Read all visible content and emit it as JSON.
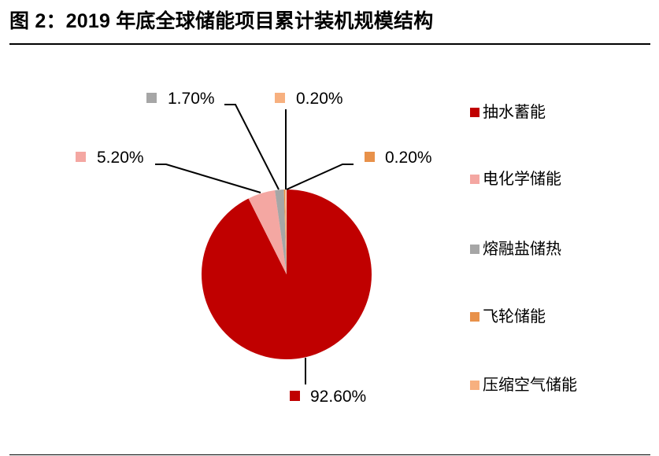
{
  "title": "图 2：2019 年底全球储能项目累计装机规模结构",
  "chart_data": {
    "type": "pie",
    "title": "图 2：2019 年底全球储能项目累计装机规模结构",
    "categories": [
      "抽水蓄能",
      "电化学储能",
      "熔融盐储热",
      "飞轮储能",
      "压缩空气储能"
    ],
    "values": [
      92.6,
      5.2,
      1.7,
      0.2,
      0.2
    ],
    "labels": [
      "92.60%",
      "5.20%",
      "1.70%",
      "0.20%",
      "0.20%"
    ],
    "colors": [
      "#C00000",
      "#F4A7A2",
      "#A6A6A6",
      "#E8914A",
      "#F7B07F"
    ],
    "start_angle": 90,
    "direction": "clockwise",
    "legend_position": "right",
    "xlabel": "",
    "ylabel": ""
  },
  "legend": [
    {
      "label": "抽水蓄能",
      "color": "#C00000"
    },
    {
      "label": "电化学储能",
      "color": "#F4A7A2"
    },
    {
      "label": "熔融盐储热",
      "color": "#A6A6A6"
    },
    {
      "label": "飞轮储能",
      "color": "#E8914A"
    },
    {
      "label": "压缩空气储能",
      "color": "#F7B07F"
    }
  ],
  "data_labels": {
    "pumped_hydro": "92.60%",
    "electrochemical": "5.20%",
    "molten_salt": "1.70%",
    "flywheel": "0.20%",
    "compressed_air": "0.20%"
  }
}
